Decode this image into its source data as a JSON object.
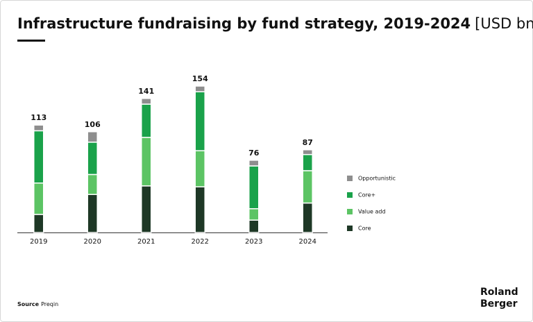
{
  "chart_data": {
    "type": "stacked_bar",
    "title": "Infrastructure fundraising by fund strategy, 2019-2024",
    "unit": "[USD bn]",
    "categories": [
      "2019",
      "2020",
      "2021",
      "2022",
      "2023",
      "2024"
    ],
    "series": [
      {
        "name": "Core",
        "color": "#1e3826",
        "values": [
          19,
          40,
          49,
          48,
          13,
          31
        ]
      },
      {
        "name": "Value add",
        "color": "#5cc464",
        "values": [
          33,
          21,
          51,
          38,
          12,
          34
        ]
      },
      {
        "name": "Core+",
        "color": "#1aa24a",
        "values": [
          55,
          34,
          35,
          62,
          45,
          17
        ]
      },
      {
        "name": "Opportunistic",
        "color": "#8e8e8e",
        "values": [
          6,
          11,
          6,
          6,
          6,
          5
        ]
      }
    ],
    "totals": [
      113,
      106,
      141,
      154,
      76,
      87
    ],
    "legend_order": [
      3,
      2,
      1,
      0
    ],
    "source_label": "Source",
    "source": "Preqin",
    "logo": [
      "Roland",
      "Berger"
    ]
  }
}
